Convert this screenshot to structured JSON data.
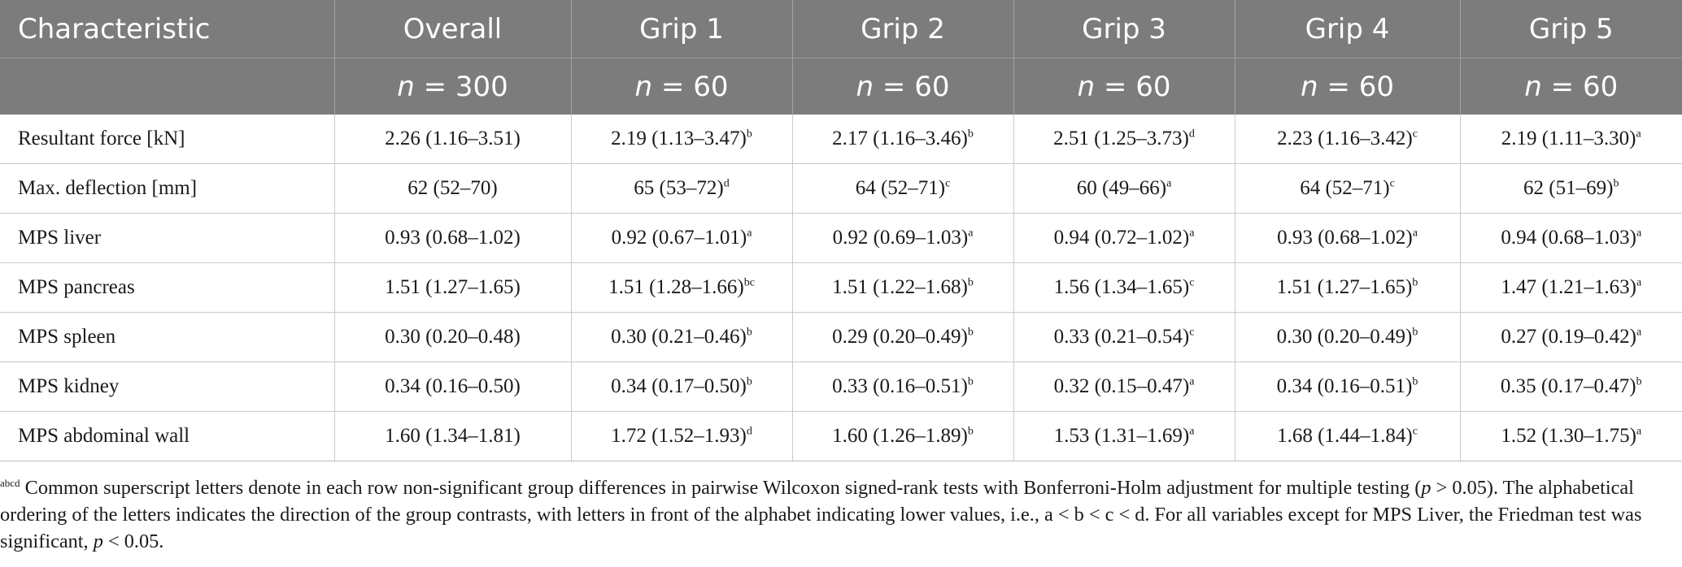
{
  "table": {
    "header_row1": [
      "Characteristic",
      "Overall",
      "Grip 1",
      "Grip 2",
      "Grip 3",
      "Grip 4",
      "Grip 5"
    ],
    "header_row2": {
      "n_symbol": "n",
      "values": [
        "= 300",
        "= 60",
        "= 60",
        "= 60",
        "= 60",
        "= 60"
      ]
    },
    "rows": [
      {
        "label": "Resultant force [kN]",
        "cells": [
          {
            "value": "2.26 (1.16–3.51)",
            "sup": ""
          },
          {
            "value": "2.19 (1.13–3.47)",
            "sup": "b"
          },
          {
            "value": "2.17 (1.16–3.46)",
            "sup": "b"
          },
          {
            "value": "2.51 (1.25–3.73)",
            "sup": "d"
          },
          {
            "value": "2.23 (1.16–3.42)",
            "sup": "c"
          },
          {
            "value": "2.19 (1.11–3.30)",
            "sup": "a"
          }
        ]
      },
      {
        "label": "Max. deflection [mm]",
        "cells": [
          {
            "value": "62 (52–70)",
            "sup": ""
          },
          {
            "value": "65 (53–72)",
            "sup": "d"
          },
          {
            "value": "64 (52–71)",
            "sup": "c"
          },
          {
            "value": "60 (49–66)",
            "sup": "a"
          },
          {
            "value": "64 (52–71)",
            "sup": "c"
          },
          {
            "value": "62 (51–69)",
            "sup": "b"
          }
        ]
      },
      {
        "label": "MPS liver",
        "cells": [
          {
            "value": "0.93 (0.68–1.02)",
            "sup": ""
          },
          {
            "value": "0.92 (0.67–1.01)",
            "sup": "a"
          },
          {
            "value": "0.92 (0.69–1.03)",
            "sup": "a"
          },
          {
            "value": "0.94 (0.72–1.02)",
            "sup": "a"
          },
          {
            "value": "0.93 (0.68–1.02)",
            "sup": "a"
          },
          {
            "value": "0.94 (0.68–1.03)",
            "sup": "a"
          }
        ]
      },
      {
        "label": "MPS pancreas",
        "cells": [
          {
            "value": "1.51 (1.27–1.65)",
            "sup": ""
          },
          {
            "value": "1.51 (1.28–1.66)",
            "sup": "bc"
          },
          {
            "value": "1.51 (1.22–1.68)",
            "sup": "b"
          },
          {
            "value": "1.56 (1.34–1.65)",
            "sup": "c"
          },
          {
            "value": "1.51 (1.27–1.65)",
            "sup": "b"
          },
          {
            "value": "1.47 (1.21–1.63)",
            "sup": "a"
          }
        ]
      },
      {
        "label": "MPS spleen",
        "cells": [
          {
            "value": "0.30 (0.20–0.48)",
            "sup": ""
          },
          {
            "value": "0.30 (0.21–0.46)",
            "sup": "b"
          },
          {
            "value": "0.29 (0.20–0.49)",
            "sup": "b"
          },
          {
            "value": "0.33 (0.21–0.54)",
            "sup": "c"
          },
          {
            "value": "0.30 (0.20–0.49)",
            "sup": "b"
          },
          {
            "value": "0.27 (0.19–0.42)",
            "sup": "a"
          }
        ]
      },
      {
        "label": "MPS kidney",
        "cells": [
          {
            "value": "0.34 (0.16–0.50)",
            "sup": ""
          },
          {
            "value": "0.34 (0.17–0.50)",
            "sup": "b"
          },
          {
            "value": "0.33 (0.16–0.51)",
            "sup": "b"
          },
          {
            "value": "0.32 (0.15–0.47)",
            "sup": "a"
          },
          {
            "value": "0.34 (0.16–0.51)",
            "sup": "b"
          },
          {
            "value": "0.35 (0.17–0.47)",
            "sup": "b"
          }
        ]
      },
      {
        "label": "MPS abdominal wall",
        "cells": [
          {
            "value": "1.60 (1.34–1.81)",
            "sup": ""
          },
          {
            "value": "1.72 (1.52–1.93)",
            "sup": "d"
          },
          {
            "value": "1.60 (1.26–1.89)",
            "sup": "b"
          },
          {
            "value": "1.53 (1.31–1.69)",
            "sup": "a"
          },
          {
            "value": "1.68 (1.44–1.84)",
            "sup": "c"
          },
          {
            "value": "1.52 (1.30–1.75)",
            "sup": "a"
          }
        ]
      }
    ]
  },
  "footnote": {
    "sup_marker": "abcd",
    "part1": " Common superscript letters denote in each row non-significant group differences in pairwise Wilcoxon signed-rank tests with Bonferroni-Holm adjustment for multiple testing (",
    "p_symbol": "p",
    "part2": " > 0.05). The alphabetical ordering of the letters indicates the direction of the group contrasts, with letters in front of the alphabet indicating lower values, i.e., a < b < c < d. For all variables except for MPS Liver, the Friedman test was significant, ",
    "p_symbol_2": "p",
    "part3": " < 0.05."
  },
  "colors": {
    "header_bg": "#7c7c7c",
    "header_text": "#ffffff",
    "grid": "#c9c9c9",
    "body_text": "#1a1a1a"
  }
}
